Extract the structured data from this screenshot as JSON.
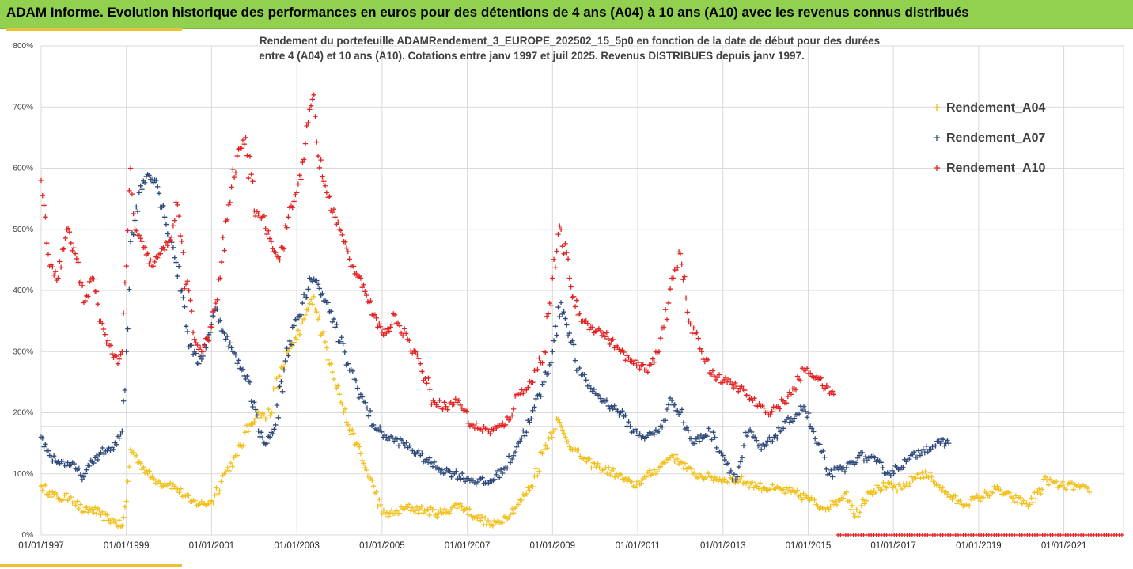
{
  "header": {
    "title": "ADAM Informe. Evolution historique des performances en euros pour des détentions de 4 ans (A04) à 10 ans (A10) avec les revenus connus distribués"
  },
  "colors": {
    "header_bg": "#92d050",
    "accent": "#e8c33a",
    "A04": "#f2c01e",
    "A07": "#2f4a7a",
    "A10": "#e32222"
  },
  "chart_data": {
    "type": "scatter",
    "subtitle_line1": "Rendement du portefeuille ADAMRendement_3_EUROPE_202502_15_5p0  en fonction de la date de début pour des durées",
    "subtitle_line2": "entre 4 (A04) et 10 ans (A10). Cotations  entre janv 1997 et juil 2025. Revenus DISTRIBUES depuis janv 1997.",
    "y_tick_labels": [
      "0%",
      "100%",
      "200%",
      "300%",
      "400%",
      "500%",
      "600%",
      "700%",
      "800%"
    ],
    "ylim": [
      0,
      800
    ],
    "x_tick_labels": [
      "01/01/1997",
      "01/01/1999",
      "01/01/2001",
      "01/01/2003",
      "01/01/2005",
      "01/01/2007",
      "01/01/2009",
      "01/01/2011",
      "01/01/2013",
      "01/01/2015",
      "01/01/2017",
      "01/01/2019",
      "01/01/2021"
    ],
    "xlim": [
      1997.0,
      2022.4
    ],
    "grid": true,
    "legend_position": "right",
    "reference_line_y": 177,
    "series": [
      {
        "name": "Rendement_A04",
        "points": [
          [
            1997.0,
            80
          ],
          [
            1997.2,
            70
          ],
          [
            1997.4,
            60
          ],
          [
            1997.7,
            62
          ],
          [
            1998.0,
            38
          ],
          [
            1998.2,
            42
          ],
          [
            1998.4,
            33
          ],
          [
            1998.7,
            22
          ],
          [
            1998.9,
            15
          ],
          [
            1999.0,
            55
          ],
          [
            1999.1,
            140
          ],
          [
            1999.3,
            120
          ],
          [
            1999.5,
            100
          ],
          [
            1999.8,
            85
          ],
          [
            2000.0,
            85
          ],
          [
            2000.2,
            75
          ],
          [
            2000.5,
            55
          ],
          [
            2000.8,
            50
          ],
          [
            2001.0,
            55
          ],
          [
            2001.3,
            100
          ],
          [
            2001.6,
            130
          ],
          [
            2001.9,
            180
          ],
          [
            2002.1,
            200
          ],
          [
            2002.3,
            190
          ],
          [
            2002.6,
            260
          ],
          [
            2002.8,
            300
          ],
          [
            2003.0,
            320
          ],
          [
            2003.2,
            360
          ],
          [
            2003.4,
            390
          ],
          [
            2003.6,
            330
          ],
          [
            2003.8,
            280
          ],
          [
            2004.0,
            230
          ],
          [
            2004.2,
            180
          ],
          [
            2004.4,
            150
          ],
          [
            2004.6,
            110
          ],
          [
            2004.8,
            80
          ],
          [
            2005.0,
            35
          ],
          [
            2005.3,
            35
          ],
          [
            2005.6,
            45
          ],
          [
            2006.0,
            40
          ],
          [
            2006.4,
            35
          ],
          [
            2006.8,
            50
          ],
          [
            2007.2,
            30
          ],
          [
            2007.6,
            15
          ],
          [
            2007.9,
            30
          ],
          [
            2008.2,
            50
          ],
          [
            2008.5,
            80
          ],
          [
            2008.8,
            140
          ],
          [
            2009.1,
            190
          ],
          [
            2009.3,
            160
          ],
          [
            2009.5,
            140
          ],
          [
            2009.8,
            120
          ],
          [
            2010.1,
            110
          ],
          [
            2010.5,
            100
          ],
          [
            2010.9,
            80
          ],
          [
            2011.2,
            95
          ],
          [
            2011.5,
            110
          ],
          [
            2011.8,
            130
          ],
          [
            2012.0,
            120
          ],
          [
            2012.3,
            100
          ],
          [
            2012.7,
            95
          ],
          [
            2013.0,
            90
          ],
          [
            2013.4,
            90
          ],
          [
            2013.8,
            80
          ],
          [
            2014.2,
            75
          ],
          [
            2014.6,
            70
          ],
          [
            2015.0,
            60
          ],
          [
            2015.3,
            45
          ],
          [
            2015.6,
            50
          ],
          [
            2015.9,
            70
          ],
          [
            2016.1,
            30
          ],
          [
            2016.4,
            70
          ],
          [
            2016.8,
            80
          ],
          [
            2017.2,
            75
          ],
          [
            2017.6,
            100
          ],
          [
            2017.9,
            95
          ],
          [
            2018.2,
            70
          ],
          [
            2018.6,
            50
          ],
          [
            2019.0,
            60
          ],
          [
            2019.4,
            75
          ],
          [
            2019.8,
            60
          ],
          [
            2020.2,
            50
          ],
          [
            2020.6,
            90
          ],
          [
            2020.9,
            80
          ],
          [
            2021.3,
            80
          ],
          [
            2021.6,
            70
          ]
        ]
      },
      {
        "name": "Rendement_A07",
        "points": [
          [
            1997.0,
            160
          ],
          [
            1997.2,
            130
          ],
          [
            1997.4,
            120
          ],
          [
            1997.7,
            115
          ],
          [
            1998.0,
            95
          ],
          [
            1998.2,
            120
          ],
          [
            1998.4,
            135
          ],
          [
            1998.7,
            140
          ],
          [
            1998.9,
            170
          ],
          [
            1999.0,
            300
          ],
          [
            1999.1,
            480
          ],
          [
            1999.3,
            560
          ],
          [
            1999.5,
            590
          ],
          [
            1999.7,
            580
          ],
          [
            1999.9,
            520
          ],
          [
            2000.1,
            470
          ],
          [
            2000.3,
            400
          ],
          [
            2000.5,
            310
          ],
          [
            2000.7,
            280
          ],
          [
            2000.9,
            320
          ],
          [
            2001.1,
            370
          ],
          [
            2001.3,
            330
          ],
          [
            2001.5,
            300
          ],
          [
            2001.7,
            270
          ],
          [
            2001.9,
            250
          ],
          [
            2002.1,
            170
          ],
          [
            2002.3,
            150
          ],
          [
            2002.5,
            180
          ],
          [
            2002.7,
            270
          ],
          [
            2002.9,
            340
          ],
          [
            2003.1,
            360
          ],
          [
            2003.3,
            420
          ],
          [
            2003.5,
            410
          ],
          [
            2003.7,
            380
          ],
          [
            2003.9,
            340
          ],
          [
            2004.2,
            280
          ],
          [
            2004.5,
            230
          ],
          [
            2004.8,
            180
          ],
          [
            2005.1,
            160
          ],
          [
            2005.5,
            150
          ],
          [
            2005.9,
            130
          ],
          [
            2006.3,
            110
          ],
          [
            2006.7,
            100
          ],
          [
            2007.1,
            90
          ],
          [
            2007.5,
            85
          ],
          [
            2007.9,
            110
          ],
          [
            2008.2,
            150
          ],
          [
            2008.5,
            190
          ],
          [
            2008.8,
            250
          ],
          [
            2009.0,
            300
          ],
          [
            2009.2,
            380
          ],
          [
            2009.4,
            330
          ],
          [
            2009.6,
            270
          ],
          [
            2009.9,
            240
          ],
          [
            2010.2,
            220
          ],
          [
            2010.6,
            200
          ],
          [
            2010.9,
            170
          ],
          [
            2011.2,
            160
          ],
          [
            2011.5,
            170
          ],
          [
            2011.8,
            220
          ],
          [
            2012.0,
            200
          ],
          [
            2012.3,
            150
          ],
          [
            2012.7,
            170
          ],
          [
            2013.0,
            130
          ],
          [
            2013.3,
            90
          ],
          [
            2013.6,
            170
          ],
          [
            2013.9,
            140
          ],
          [
            2014.2,
            160
          ],
          [
            2014.6,
            190
          ],
          [
            2014.9,
            210
          ],
          [
            2015.2,
            150
          ],
          [
            2015.5,
            100
          ],
          [
            2015.9,
            110
          ],
          [
            2016.2,
            130
          ],
          [
            2016.6,
            120
          ],
          [
            2016.9,
            100
          ],
          [
            2017.3,
            120
          ],
          [
            2017.7,
            140
          ],
          [
            2018.1,
            150
          ],
          [
            2018.3,
            150
          ]
        ]
      },
      {
        "name": "Rendement_A10",
        "points": [
          [
            1997.0,
            580
          ],
          [
            1997.1,
            520
          ],
          [
            1997.2,
            440
          ],
          [
            1997.4,
            420
          ],
          [
            1997.6,
            500
          ],
          [
            1997.8,
            460
          ],
          [
            1998.0,
            380
          ],
          [
            1998.2,
            420
          ],
          [
            1998.4,
            350
          ],
          [
            1998.6,
            310
          ],
          [
            1998.8,
            280
          ],
          [
            1998.9,
            300
          ],
          [
            1999.0,
            440
          ],
          [
            1999.1,
            600
          ],
          [
            1999.2,
            500
          ],
          [
            1999.4,
            470
          ],
          [
            1999.6,
            440
          ],
          [
            1999.8,
            460
          ],
          [
            2000.0,
            480
          ],
          [
            2000.2,
            540
          ],
          [
            2000.4,
            410
          ],
          [
            2000.6,
            320
          ],
          [
            2000.8,
            300
          ],
          [
            2001.0,
            340
          ],
          [
            2001.2,
            420
          ],
          [
            2001.4,
            540
          ],
          [
            2001.6,
            620
          ],
          [
            2001.8,
            650
          ],
          [
            2002.0,
            530
          ],
          [
            2002.2,
            520
          ],
          [
            2002.4,
            480
          ],
          [
            2002.6,
            450
          ],
          [
            2002.8,
            520
          ],
          [
            2003.0,
            560
          ],
          [
            2003.2,
            640
          ],
          [
            2003.4,
            720
          ],
          [
            2003.5,
            620
          ],
          [
            2003.7,
            560
          ],
          [
            2003.9,
            520
          ],
          [
            2004.1,
            480
          ],
          [
            2004.3,
            440
          ],
          [
            2004.5,
            420
          ],
          [
            2004.7,
            380
          ],
          [
            2004.9,
            340
          ],
          [
            2005.1,
            330
          ],
          [
            2005.3,
            360
          ],
          [
            2005.6,
            320
          ],
          [
            2005.9,
            280
          ],
          [
            2006.2,
            220
          ],
          [
            2006.5,
            210
          ],
          [
            2006.8,
            220
          ],
          [
            2007.1,
            180
          ],
          [
            2007.5,
            170
          ],
          [
            2007.9,
            180
          ],
          [
            2008.2,
            230
          ],
          [
            2008.5,
            250
          ],
          [
            2008.8,
            300
          ],
          [
            2009.0,
            420
          ],
          [
            2009.2,
            500
          ],
          [
            2009.4,
            420
          ],
          [
            2009.6,
            360
          ],
          [
            2009.9,
            340
          ],
          [
            2010.2,
            330
          ],
          [
            2010.6,
            300
          ],
          [
            2010.9,
            280
          ],
          [
            2011.2,
            270
          ],
          [
            2011.5,
            300
          ],
          [
            2011.8,
            420
          ],
          [
            2012.0,
            460
          ],
          [
            2012.2,
            350
          ],
          [
            2012.5,
            300
          ],
          [
            2012.8,
            260
          ],
          [
            2013.1,
            250
          ],
          [
            2013.4,
            240
          ],
          [
            2013.7,
            220
          ],
          [
            2014.0,
            200
          ],
          [
            2014.3,
            210
          ],
          [
            2014.6,
            230
          ],
          [
            2014.9,
            270
          ],
          [
            2015.2,
            260
          ],
          [
            2015.4,
            240
          ],
          [
            2015.6,
            230
          ]
        ]
      }
    ],
    "zero_line_series": {
      "name": "Rendement_A10",
      "x_start": 2015.7,
      "x_end": 2022.4,
      "value": 0
    }
  }
}
